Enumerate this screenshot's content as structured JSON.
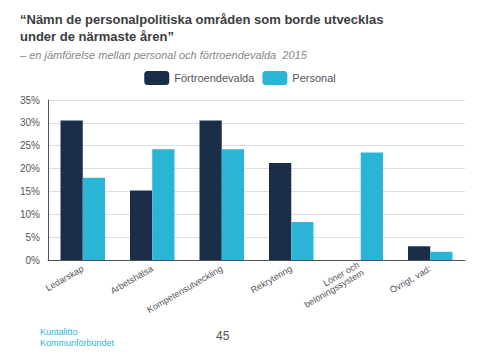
{
  "chart_data": {
    "type": "bar",
    "title": "“Nämn de personalpolitiska områden som borde utvecklas\nunder de närmaste åren”",
    "subtitle": "– en jämförelse mellan personal och förtroendevalda  2015",
    "categories": [
      "Ledarskap",
      "Arbetshälsa",
      "Kompetensutveckling",
      "Rekrytering",
      "Löner och\nbelöningssystem",
      "Övrigt, vad:"
    ],
    "series": [
      {
        "name": "Förtroendevalda",
        "color": "#1a2e4a",
        "values": [
          0.305,
          0.152,
          0.305,
          0.212,
          0.0,
          0.03
        ]
      },
      {
        "name": "Personal",
        "color": "#2ab5d6",
        "values": [
          0.18,
          0.242,
          0.242,
          0.083,
          0.235,
          0.018
        ]
      }
    ],
    "ylim": [
      0,
      0.35
    ],
    "yticks": [
      {
        "value": 0.0,
        "label": "0%"
      },
      {
        "value": 0.05,
        "label": "5%"
      },
      {
        "value": 0.1,
        "label": "10%"
      },
      {
        "value": 0.15,
        "label": "15%"
      },
      {
        "value": 0.2,
        "label": "20%"
      },
      {
        "value": 0.25,
        "label": "25%"
      },
      {
        "value": 0.3,
        "label": "30%"
      },
      {
        "value": 0.35,
        "label": "35%"
      }
    ],
    "grid": true,
    "legend": "top",
    "annotations": [
      "Kuntalitto\nKommunförbundet",
      "45"
    ]
  }
}
